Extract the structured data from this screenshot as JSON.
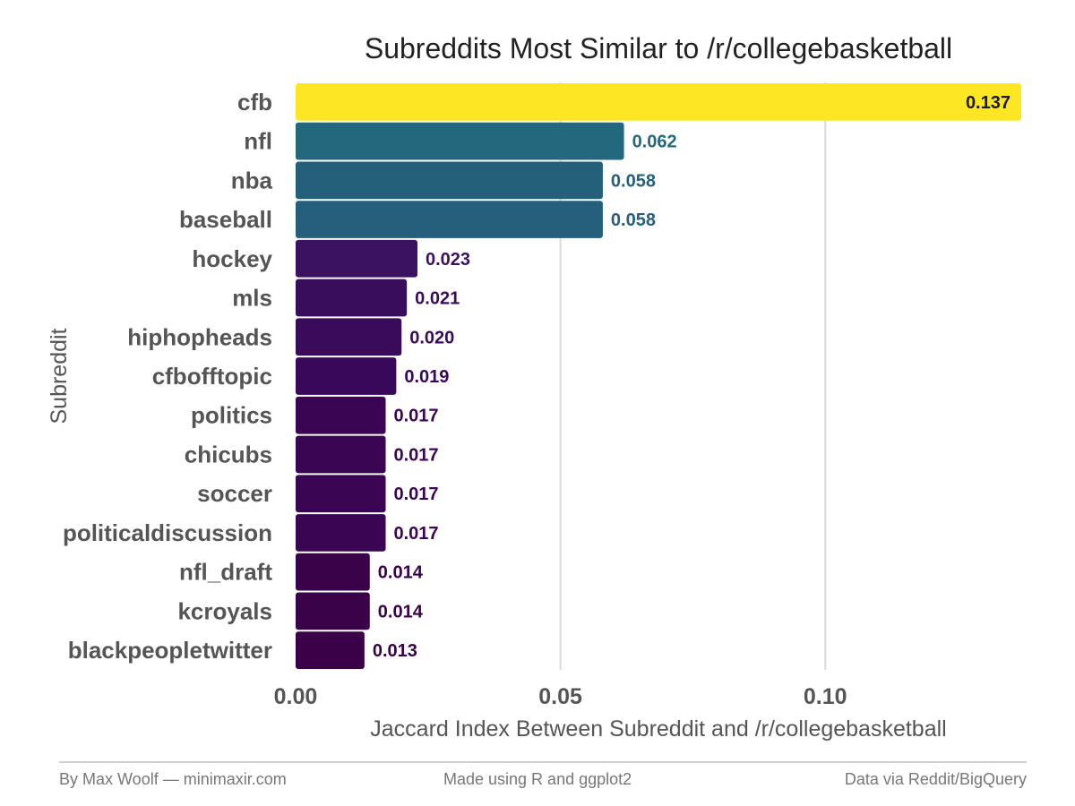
{
  "chart_data": {
    "type": "bar",
    "orientation": "horizontal",
    "title": "Subreddits Most Similar to /r/collegebasketball",
    "xlabel": "Jaccard Index Between Subreddit and /r/collegebasketball",
    "ylabel": "Subreddit",
    "xlim": [
      0,
      0.137
    ],
    "xticks": [
      0.0,
      0.05,
      0.1
    ],
    "xtick_labels": [
      "0.00",
      "0.05",
      "0.10"
    ],
    "grid": true,
    "legend": "none",
    "categories": [
      "cfb",
      "nfl",
      "nba",
      "baseball",
      "hockey",
      "mls",
      "hiphopheads",
      "cfbofftopic",
      "politics",
      "chicubs",
      "soccer",
      "politicaldiscussion",
      "nfl_draft",
      "kcroyals",
      "blackpeopletwitter"
    ],
    "values": [
      0.137,
      0.062,
      0.058,
      0.058,
      0.023,
      0.021,
      0.02,
      0.019,
      0.017,
      0.017,
      0.017,
      0.017,
      0.014,
      0.014,
      0.013
    ],
    "value_labels": [
      "0.137",
      "0.062",
      "0.058",
      "0.058",
      "0.023",
      "0.021",
      "0.020",
      "0.019",
      "0.017",
      "0.017",
      "0.017",
      "0.017",
      "0.014",
      "0.014",
      "0.013"
    ],
    "colors": [
      "#fde725",
      "#24687e",
      "#25607b",
      "#265f7b",
      "#3b1261",
      "#3a0d5c",
      "#390b5a",
      "#39085a",
      "#3a0552",
      "#3a0552",
      "#3a0552",
      "#3a0552",
      "#3a0349",
      "#3a0349",
      "#3a0148"
    ],
    "label_colors": [
      "#1a1a1a",
      "#24687e",
      "#25607b",
      "#265f7b",
      "#3b1261",
      "#3a0d5c",
      "#390b5a",
      "#39085a",
      "#3a0552",
      "#3a0552",
      "#3a0552",
      "#3a0552",
      "#3a0349",
      "#3a0349",
      "#3a0148"
    ]
  },
  "footer": {
    "left": "By Max Woolf — minimaxir.com",
    "center": "Made using R and ggplot2",
    "right": "Data via Reddit/BigQuery"
  }
}
